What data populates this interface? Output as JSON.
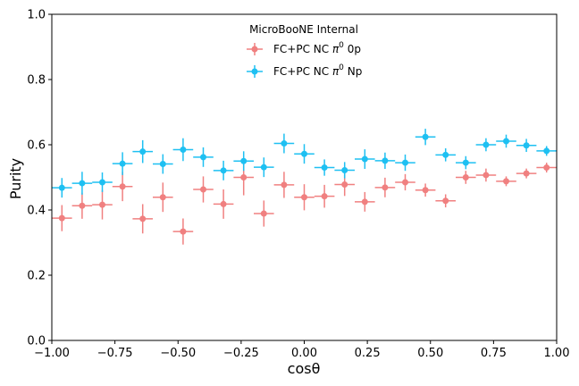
{
  "chart_data": {
    "type": "scatter",
    "xlabel": "cosθ",
    "ylabel": "Purity",
    "xlim": [
      -1.0,
      1.0
    ],
    "ylim": [
      0.0,
      1.0
    ],
    "x_ticks": [
      "−1.00",
      "−0.75",
      "−0.50",
      "−0.25",
      "0.00",
      "0.25",
      "0.50",
      "0.75",
      "1.00"
    ],
    "x_tick_values": [
      -1.0,
      -0.75,
      -0.5,
      -0.25,
      0.0,
      0.25,
      0.5,
      0.75,
      1.0
    ],
    "y_ticks": [
      "0.0",
      "0.2",
      "0.4",
      "0.6",
      "0.8",
      "1.0"
    ],
    "y_tick_values": [
      0.0,
      0.2,
      0.4,
      0.6,
      0.8,
      1.0
    ],
    "legend_title": "MicroBooNE Internal",
    "legend_placement": "top-center",
    "grid": false,
    "x_bin_half_width": 0.04,
    "series": [
      {
        "name": "FC+PC NC π0 0p",
        "name_prefix": "FC+PC NC ",
        "name_symbol": "π",
        "name_sup": "0",
        "name_suffix": " 0p",
        "color": "#f08080",
        "x": [
          -0.96,
          -0.88,
          -0.8,
          -0.72,
          -0.64,
          -0.56,
          -0.48,
          -0.4,
          -0.32,
          -0.24,
          -0.16,
          -0.08,
          0.0,
          0.08,
          0.16,
          0.24,
          0.32,
          0.4,
          0.48,
          0.56,
          0.64,
          0.72,
          0.8,
          0.88,
          0.96
        ],
        "y": [
          0.375,
          0.413,
          0.416,
          0.472,
          0.373,
          0.439,
          0.334,
          0.463,
          0.418,
          0.5,
          0.389,
          0.477,
          0.439,
          0.442,
          0.478,
          0.425,
          0.469,
          0.485,
          0.461,
          0.428,
          0.5,
          0.507,
          0.488,
          0.512,
          0.53
        ],
        "yerr": [
          0.04,
          0.04,
          0.045,
          0.045,
          0.045,
          0.045,
          0.04,
          0.04,
          0.045,
          0.055,
          0.04,
          0.04,
          0.04,
          0.035,
          0.035,
          0.03,
          0.03,
          0.025,
          0.02,
          0.02,
          0.02,
          0.02,
          0.015,
          0.015,
          0.015
        ]
      },
      {
        "name": "FC+PC NC π0 Np",
        "name_prefix": "FC+PC NC ",
        "name_symbol": "π",
        "name_sup": "0",
        "name_suffix": " Np",
        "color": "#1ec0f2",
        "x": [
          -0.96,
          -0.88,
          -0.8,
          -0.72,
          -0.64,
          -0.56,
          -0.48,
          -0.4,
          -0.32,
          -0.24,
          -0.16,
          -0.08,
          0.0,
          0.08,
          0.16,
          0.24,
          0.32,
          0.4,
          0.48,
          0.56,
          0.64,
          0.72,
          0.8,
          0.88,
          0.96
        ],
        "y": [
          0.468,
          0.482,
          0.485,
          0.542,
          0.579,
          0.541,
          0.585,
          0.562,
          0.521,
          0.55,
          0.531,
          0.604,
          0.572,
          0.53,
          0.522,
          0.556,
          0.551,
          0.545,
          0.624,
          0.569,
          0.545,
          0.6,
          0.611,
          0.598,
          0.581
        ],
        "yerr": [
          0.03,
          0.035,
          0.03,
          0.035,
          0.035,
          0.03,
          0.035,
          0.03,
          0.03,
          0.03,
          0.03,
          0.03,
          0.03,
          0.025,
          0.025,
          0.03,
          0.025,
          0.025,
          0.025,
          0.02,
          0.02,
          0.02,
          0.02,
          0.02,
          0.015
        ]
      }
    ]
  }
}
